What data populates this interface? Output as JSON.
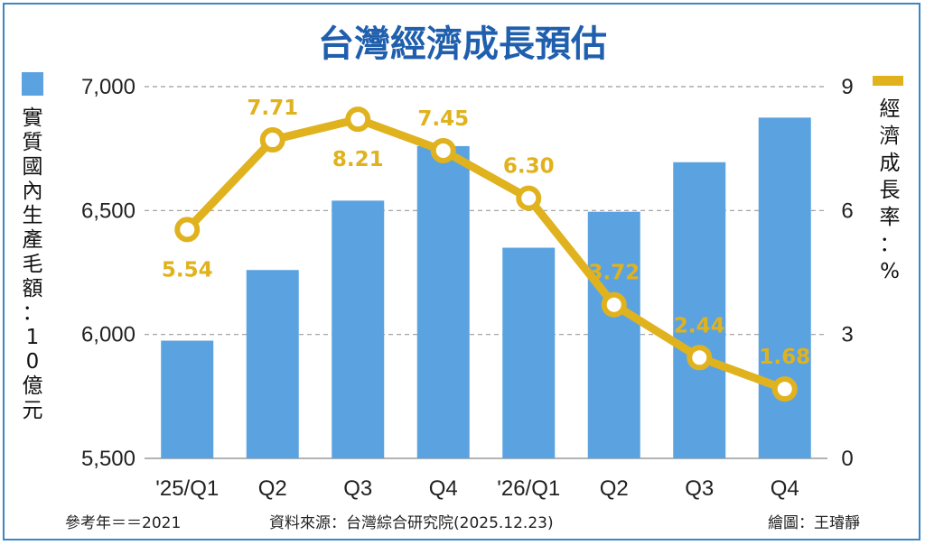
{
  "chart_data": {
    "type": "bar+line",
    "title": "台灣經濟成長預估",
    "categories": [
      "'25/Q1",
      "Q2",
      "Q3",
      "Q4",
      "'26/Q1",
      "Q2",
      "Q3",
      "Q4"
    ],
    "series": [
      {
        "name": "實質國內生產毛額：10億元",
        "type": "bar",
        "axis": "left",
        "values": [
          5975,
          6260,
          6540,
          6760,
          6350,
          6495,
          6695,
          6875
        ],
        "color": "#5ba3e0"
      },
      {
        "name": "經濟成長率：%",
        "type": "line",
        "axis": "right",
        "values": [
          5.54,
          7.71,
          8.21,
          7.45,
          6.3,
          3.72,
          2.44,
          1.68
        ],
        "labels": [
          "5.54",
          "7.71",
          "8.21",
          "7.45",
          "6.30",
          "3.72",
          "2.44",
          "1.68"
        ],
        "color": "#e0b21e"
      }
    ],
    "y_left": {
      "label": "實質國內生產毛額：10億元",
      "range": [
        5500,
        7000
      ],
      "ticks": [
        5500,
        6000,
        6500,
        7000
      ],
      "tick_labels": [
        "5,500",
        "6,000",
        "6,500",
        "7,000"
      ]
    },
    "y_right": {
      "label": "經濟成長率：%",
      "range": [
        0,
        9
      ],
      "ticks": [
        0,
        3,
        6,
        9
      ],
      "tick_labels": [
        "0",
        "3",
        "6",
        "9"
      ]
    },
    "grid": "horizontal-dashed",
    "legend": "top-left (bars), top-right (line)"
  },
  "footer": {
    "base_year": "參考年＝＝2021",
    "source": "資料來源：台灣綜合研究院(2025.12.23)",
    "credit": "繪圖：王璿靜"
  }
}
